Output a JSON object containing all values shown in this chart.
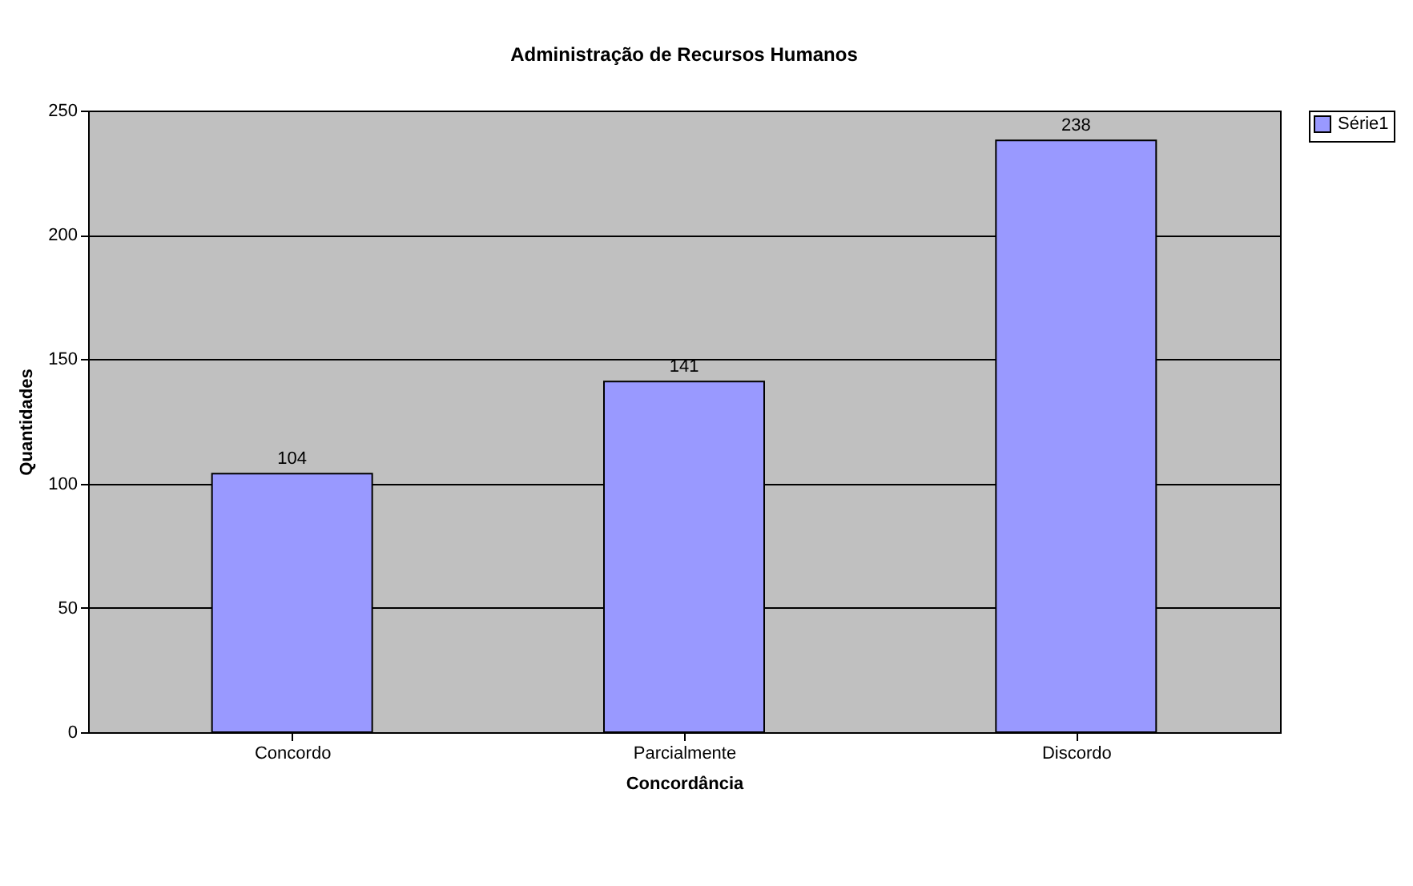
{
  "chart_data": {
    "type": "bar",
    "title": "Administração de Recursos Humanos",
    "xlabel": "Concordância",
    "ylabel": "Quantidades",
    "categories": [
      "Concordo",
      "Parcialmente",
      "Discordo"
    ],
    "series": [
      {
        "name": "Série1",
        "color": "#9999ff",
        "values": [
          104,
          141,
          238
        ]
      }
    ],
    "ylim": [
      0,
      250
    ],
    "yticks": [
      0,
      50,
      100,
      150,
      200,
      250
    ],
    "grid": "y",
    "legend": "right",
    "data_labels": true
  }
}
